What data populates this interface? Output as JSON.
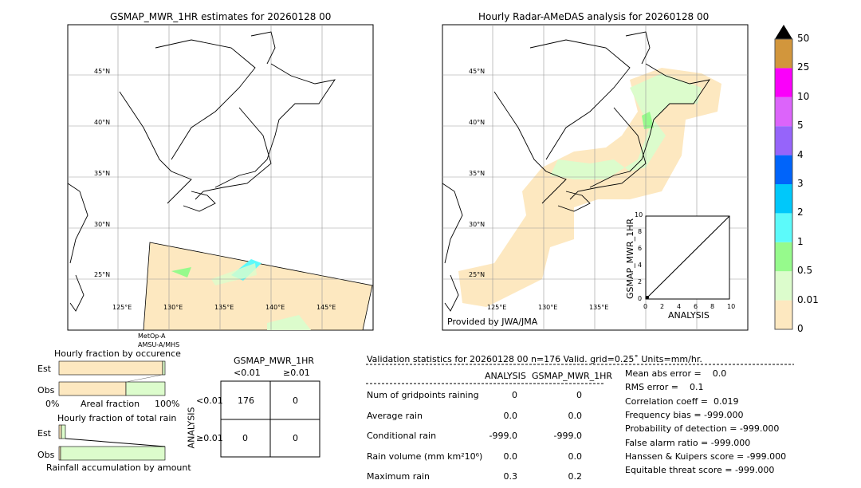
{
  "left_map": {
    "title": "GSMAP_MWR_1HR estimates for 20260128 00",
    "lat_labels": [
      "45°N",
      "40°N",
      "35°N",
      "30°N",
      "25°N"
    ],
    "lon_labels": [
      "125°E",
      "130°E",
      "135°E",
      "140°E",
      "145°E"
    ],
    "sensor_line1": "MetOp-A",
    "sensor_line2": "AMSU-A/MHS"
  },
  "right_map": {
    "title": "Hourly Radar-AMeDAS analysis for 20260128 00",
    "lat_labels": [
      "45°N",
      "40°N",
      "35°N",
      "30°N",
      "25°N"
    ],
    "lon_labels": [
      "125°E",
      "130°E",
      "135°E"
    ],
    "credit": "Provided by JWA/JMA"
  },
  "inset": {
    "ylabel": "GSMAP_MWR_1HR",
    "xlabel": "ANALYSIS",
    "ticks": [
      "0",
      "2",
      "4",
      "6",
      "8",
      "10"
    ],
    "ylim": [
      0,
      10
    ],
    "xlim": [
      0,
      10
    ]
  },
  "colorbar": {
    "labels": [
      "0",
      "0.01",
      "0.5",
      "1",
      "2",
      "3",
      "4",
      "5",
      "10",
      "25",
      "50"
    ],
    "colors": [
      "#fde8c0",
      "#dcfccc",
      "#96fa8c",
      "#5cfafa",
      "#00c8fa",
      "#0064fa",
      "#9664fa",
      "#dc64fa",
      "#fa00fa",
      "#d2963c"
    ],
    "extend_color": "#000000"
  },
  "chart_data": [
    {
      "type": "bar",
      "title": "Hourly fraction by occurence",
      "categories": [
        "Est",
        "Obs"
      ],
      "xlabel": "Areal fraction",
      "xticks": [
        "0%",
        "100%"
      ],
      "series": [
        {
          "values": [
            98,
            63
          ]
        },
        {
          "values": [
            2,
            37
          ]
        }
      ]
    },
    {
      "type": "bar",
      "title": "Hourly fraction of total rain",
      "categories": [
        "Est",
        "Obs"
      ],
      "xlabel": "Rainfall accumulation by amount",
      "series": [
        {
          "values": [
            2,
            1
          ]
        },
        {
          "values": [
            4,
            99
          ]
        }
      ]
    },
    {
      "type": "table",
      "title": "GSMAP_MWR_1HR",
      "col_headers": [
        "<0.01",
        "≥0.01"
      ],
      "row_label": "ANALYSIS",
      "row_headers": [
        "<0.01",
        "≥0.01"
      ],
      "cells": [
        [
          "176",
          "0"
        ],
        [
          "0",
          "0"
        ]
      ]
    }
  ],
  "stats": {
    "header": "Validation statistics for 20260128 00  n=176 Valid. grid=0.25˚ Units=mm/hr.",
    "col1": "ANALYSIS",
    "col2": "GSMAP_MWR_1HR",
    "rows": [
      {
        "label": "Num of gridpoints raining",
        "a": "0",
        "b": "0"
      },
      {
        "label": "Average rain",
        "a": "0.0",
        "b": "0.0"
      },
      {
        "label": "Conditional rain",
        "a": "-999.0",
        "b": "-999.0"
      },
      {
        "label": "Rain volume (mm km²10⁶)",
        "a": "0.0",
        "b": "0.0"
      },
      {
        "label": "Maximum rain",
        "a": "0.3",
        "b": "0.2"
      }
    ],
    "scores": [
      "Mean abs error =    0.0",
      "RMS error =    0.1",
      "Correlation coeff =  0.019",
      "Frequency bias = -999.000",
      "Probability of detection = -999.000",
      "False alarm ratio = -999.000",
      "Hanssen & Kuipers score = -999.000",
      "Equitable threat score = -999.000"
    ]
  }
}
